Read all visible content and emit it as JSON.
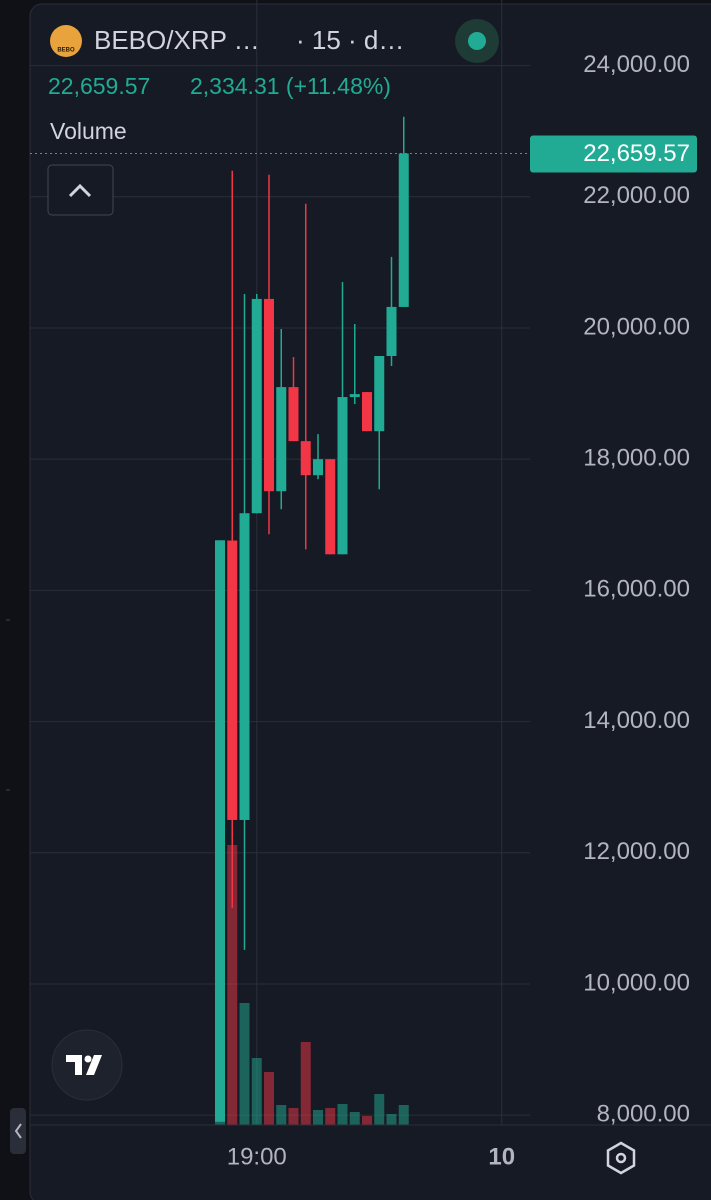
{
  "header": {
    "symbol": "BEBO/XRP …",
    "interval": "· 15 · d…",
    "change": "2,334.31 (+11.48%)",
    "logo_text": "BEBO"
  },
  "chart_data": {
    "type": "candlestick",
    "indicator": "Volume",
    "categories": [
      null,
      null,
      null,
      "19:00",
      null,
      null,
      null,
      null,
      null,
      null,
      null,
      null,
      null,
      null,
      null,
      null,
      null,
      null,
      null,
      null,
      null,
      null,
      null,
      "10"
    ],
    "open": [
      7900,
      16760,
      12500,
      17176,
      20443,
      17512,
      19099,
      18275,
      17756,
      18000,
      16550,
      18947,
      19023,
      18427,
      19573,
      20321,
      null,
      null,
      null,
      null,
      null,
      null,
      null,
      null
    ],
    "high": [
      16760,
      22397,
      20519,
      20519,
      22336,
      19985,
      19557,
      21893,
      18382,
      18000,
      20702,
      20061,
      19023,
      19573,
      21084,
      23221,
      null,
      null,
      null,
      null,
      null,
      null,
      null,
      null
    ],
    "low": [
      7900,
      11160,
      10519,
      17176,
      16855,
      17237,
      18275,
      16626,
      17695,
      16550,
      16550,
      18840,
      18427,
      17542,
      19420,
      20321,
      null,
      null,
      null,
      null,
      null,
      null,
      null,
      null
    ],
    "close": [
      16760,
      12500,
      17176,
      20443,
      17512,
      19099,
      18275,
      17756,
      18000,
      16550,
      18947,
      18992,
      18427,
      19573,
      20321,
      22659.57,
      null,
      null,
      null,
      null,
      null,
      null,
      null,
      null
    ],
    "volume": [
      585,
      280,
      122,
      67,
      53,
      20,
      17,
      83,
      15,
      17,
      21,
      13,
      9,
      31,
      11,
      20,
      null,
      null,
      null,
      null,
      null,
      null,
      null,
      null
    ],
    "up_color": "#22ab94",
    "down_color": "#f23645",
    "ylim": [
      7850,
      25000
    ],
    "yticks": [
      {
        "value": 8000,
        "label": "8,000.00"
      },
      {
        "value": 10000,
        "label": "10,000.00"
      },
      {
        "value": 12000,
        "label": "12,000.00"
      },
      {
        "value": 14000,
        "label": "14,000.00"
      },
      {
        "value": 16000,
        "label": "16,000.00"
      },
      {
        "value": 18000,
        "label": "18,000.00"
      },
      {
        "value": 20000,
        "label": "20,000.00"
      },
      {
        "value": 22000,
        "label": "22,000.00"
      },
      {
        "value": 24000,
        "label": "24,000.00"
      }
    ],
    "last_price": {
      "value": 22659.57,
      "label": "22,659.57"
    },
    "grid": true
  }
}
